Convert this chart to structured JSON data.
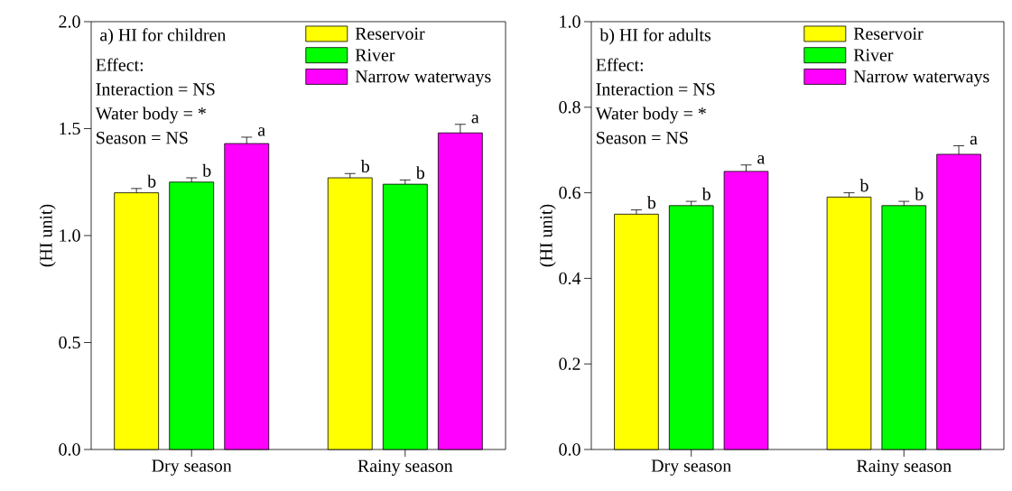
{
  "chart_data": [
    {
      "type": "bar",
      "title": "a) HI for children",
      "ylabel": "(HI unit)",
      "categories": [
        "Dry season",
        "Rainy season"
      ],
      "series": [
        {
          "name": "Reservoir",
          "color": "#ffff00",
          "values": [
            1.2,
            1.27
          ],
          "errors": [
            0.02,
            0.02
          ],
          "value_labels": [
            "b",
            "b"
          ]
        },
        {
          "name": "River",
          "color": "#00ff00",
          "values": [
            1.25,
            1.24
          ],
          "errors": [
            0.02,
            0.02
          ],
          "value_labels": [
            "b",
            "b"
          ]
        },
        {
          "name": "Narrow waterways",
          "color": "#ff00ff",
          "values": [
            1.43,
            1.48
          ],
          "errors": [
            0.03,
            0.04
          ],
          "value_labels": [
            "a",
            "a"
          ]
        }
      ],
      "ylim": [
        0,
        2
      ],
      "yticks": [
        {
          "value": 0,
          "label": "0.0"
        },
        {
          "value": 0.5,
          "label": "0.5"
        },
        {
          "value": 1,
          "label": "1.0"
        },
        {
          "value": 1.5,
          "label": "1.5"
        },
        {
          "value": 2,
          "label": "2.0"
        }
      ],
      "legend": "top right",
      "annotations": [
        "Effect:",
        "Interaction = NS",
        "Water body = *",
        "Season = NS"
      ]
    },
    {
      "type": "bar",
      "title": "b) HI for adults",
      "ylabel": "(HI unit)",
      "categories": [
        "Dry season",
        "Rainy season"
      ],
      "series": [
        {
          "name": "Reservoir",
          "color": "#ffff00",
          "values": [
            0.55,
            0.59
          ],
          "errors": [
            0.01,
            0.01
          ],
          "value_labels": [
            "b",
            "b"
          ]
        },
        {
          "name": "River",
          "color": "#00ff00",
          "values": [
            0.57,
            0.57
          ],
          "errors": [
            0.01,
            0.01
          ],
          "value_labels": [
            "b",
            "b"
          ]
        },
        {
          "name": "Narrow waterways",
          "color": "#ff00ff",
          "values": [
            0.65,
            0.69
          ],
          "errors": [
            0.015,
            0.02
          ],
          "value_labels": [
            "a",
            "a"
          ]
        }
      ],
      "ylim": [
        0,
        1
      ],
      "yticks": [
        {
          "value": 0,
          "label": "0.0"
        },
        {
          "value": 0.2,
          "label": "0.2"
        },
        {
          "value": 0.4,
          "label": "0.4"
        },
        {
          "value": 0.6,
          "label": "0.6"
        },
        {
          "value": 0.8,
          "label": "0.8"
        },
        {
          "value": 1,
          "label": "1.0"
        }
      ],
      "legend": "top right",
      "annotations": [
        "Effect:",
        "Interaction = NS",
        "Water body = *",
        "Season = NS"
      ]
    }
  ]
}
